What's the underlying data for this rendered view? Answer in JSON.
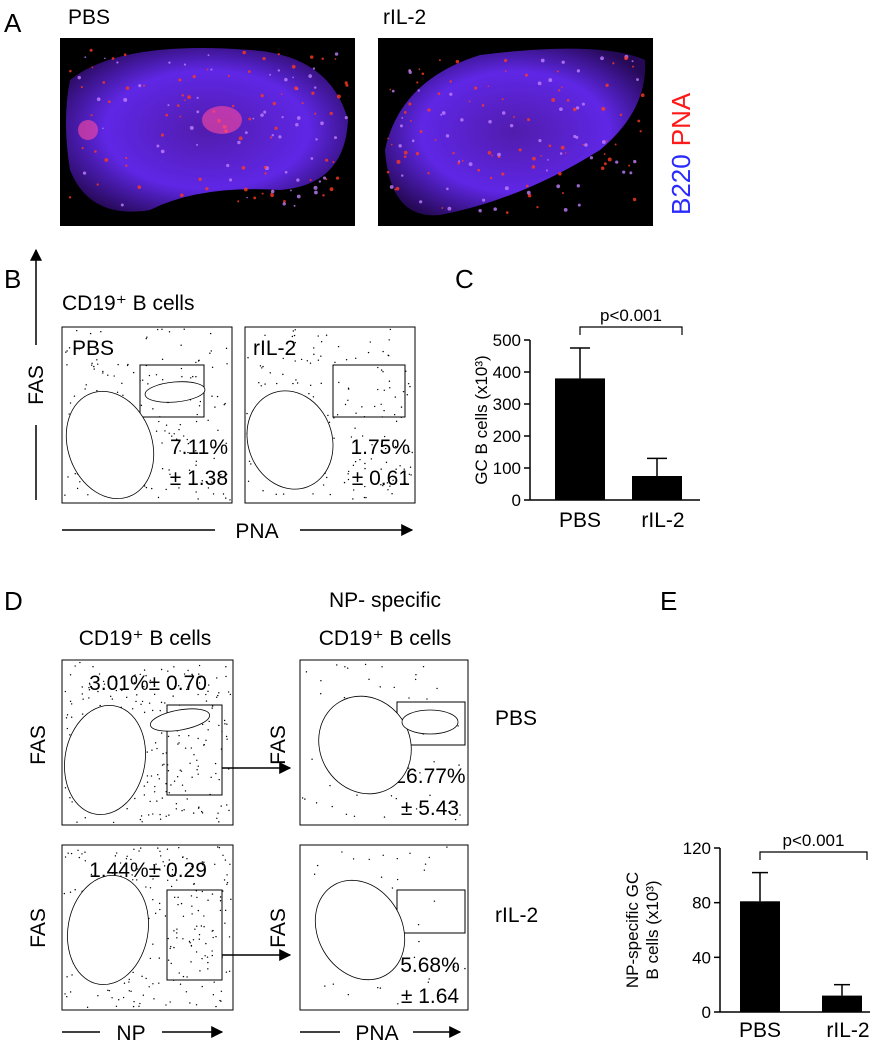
{
  "figure": {
    "panel_labels": [
      "A",
      "B",
      "C",
      "D",
      "E"
    ],
    "panel_a": {
      "labels": [
        "PBS",
        "rIL-2"
      ],
      "stain_1": "B220",
      "stain_2": "PNA"
    },
    "panel_b": {
      "title": "CD19⁺ B cells",
      "y_axis": "FAS",
      "x_axis": "PNA",
      "plots": [
        {
          "label": "PBS",
          "percent": "7.11%",
          "sd": "± 1.38"
        },
        {
          "label": "rIL-2",
          "percent": "1.75%",
          "sd": "± 0.61"
        }
      ]
    },
    "panel_d": {
      "left_title": "CD19⁺ B cells",
      "right_title": [
        "NP- specific",
        "CD19⁺ B cells"
      ],
      "y_axis": "FAS",
      "left_x_axis": "NP",
      "right_x_axis": "PNA",
      "rows": [
        {
          "label": "PBS",
          "left_gate": "3.01%± 0.70",
          "percent": "26.77%",
          "sd": "± 5.43"
        },
        {
          "label": "rIL-2",
          "left_gate": "1.44%± 0.29",
          "percent": "5.68%",
          "sd": "± 1.64"
        }
      ]
    }
  },
  "chart_data": [
    {
      "type": "bar",
      "ylabel": [
        "GC B cells (x10³)"
      ],
      "categories": [
        "PBS",
        "rIL-2"
      ],
      "values": [
        380,
        75
      ],
      "errors": [
        95,
        55
      ],
      "color": "#000000",
      "ylim": [
        0,
        500
      ],
      "yticks": [
        0,
        100,
        200,
        300,
        400,
        500
      ],
      "annotation": "p<0.001"
    },
    {
      "type": "bar",
      "ylabel": [
        "NP-specific GC",
        "B cells (x10³)"
      ],
      "categories": [
        "PBS",
        "rIL-2"
      ],
      "values": [
        81,
        12
      ],
      "errors": [
        21,
        8
      ],
      "color": "#000000",
      "ylim": [
        0,
        120
      ],
      "yticks": [
        0,
        40,
        80,
        120
      ],
      "annotation": "p<0.001"
    }
  ]
}
